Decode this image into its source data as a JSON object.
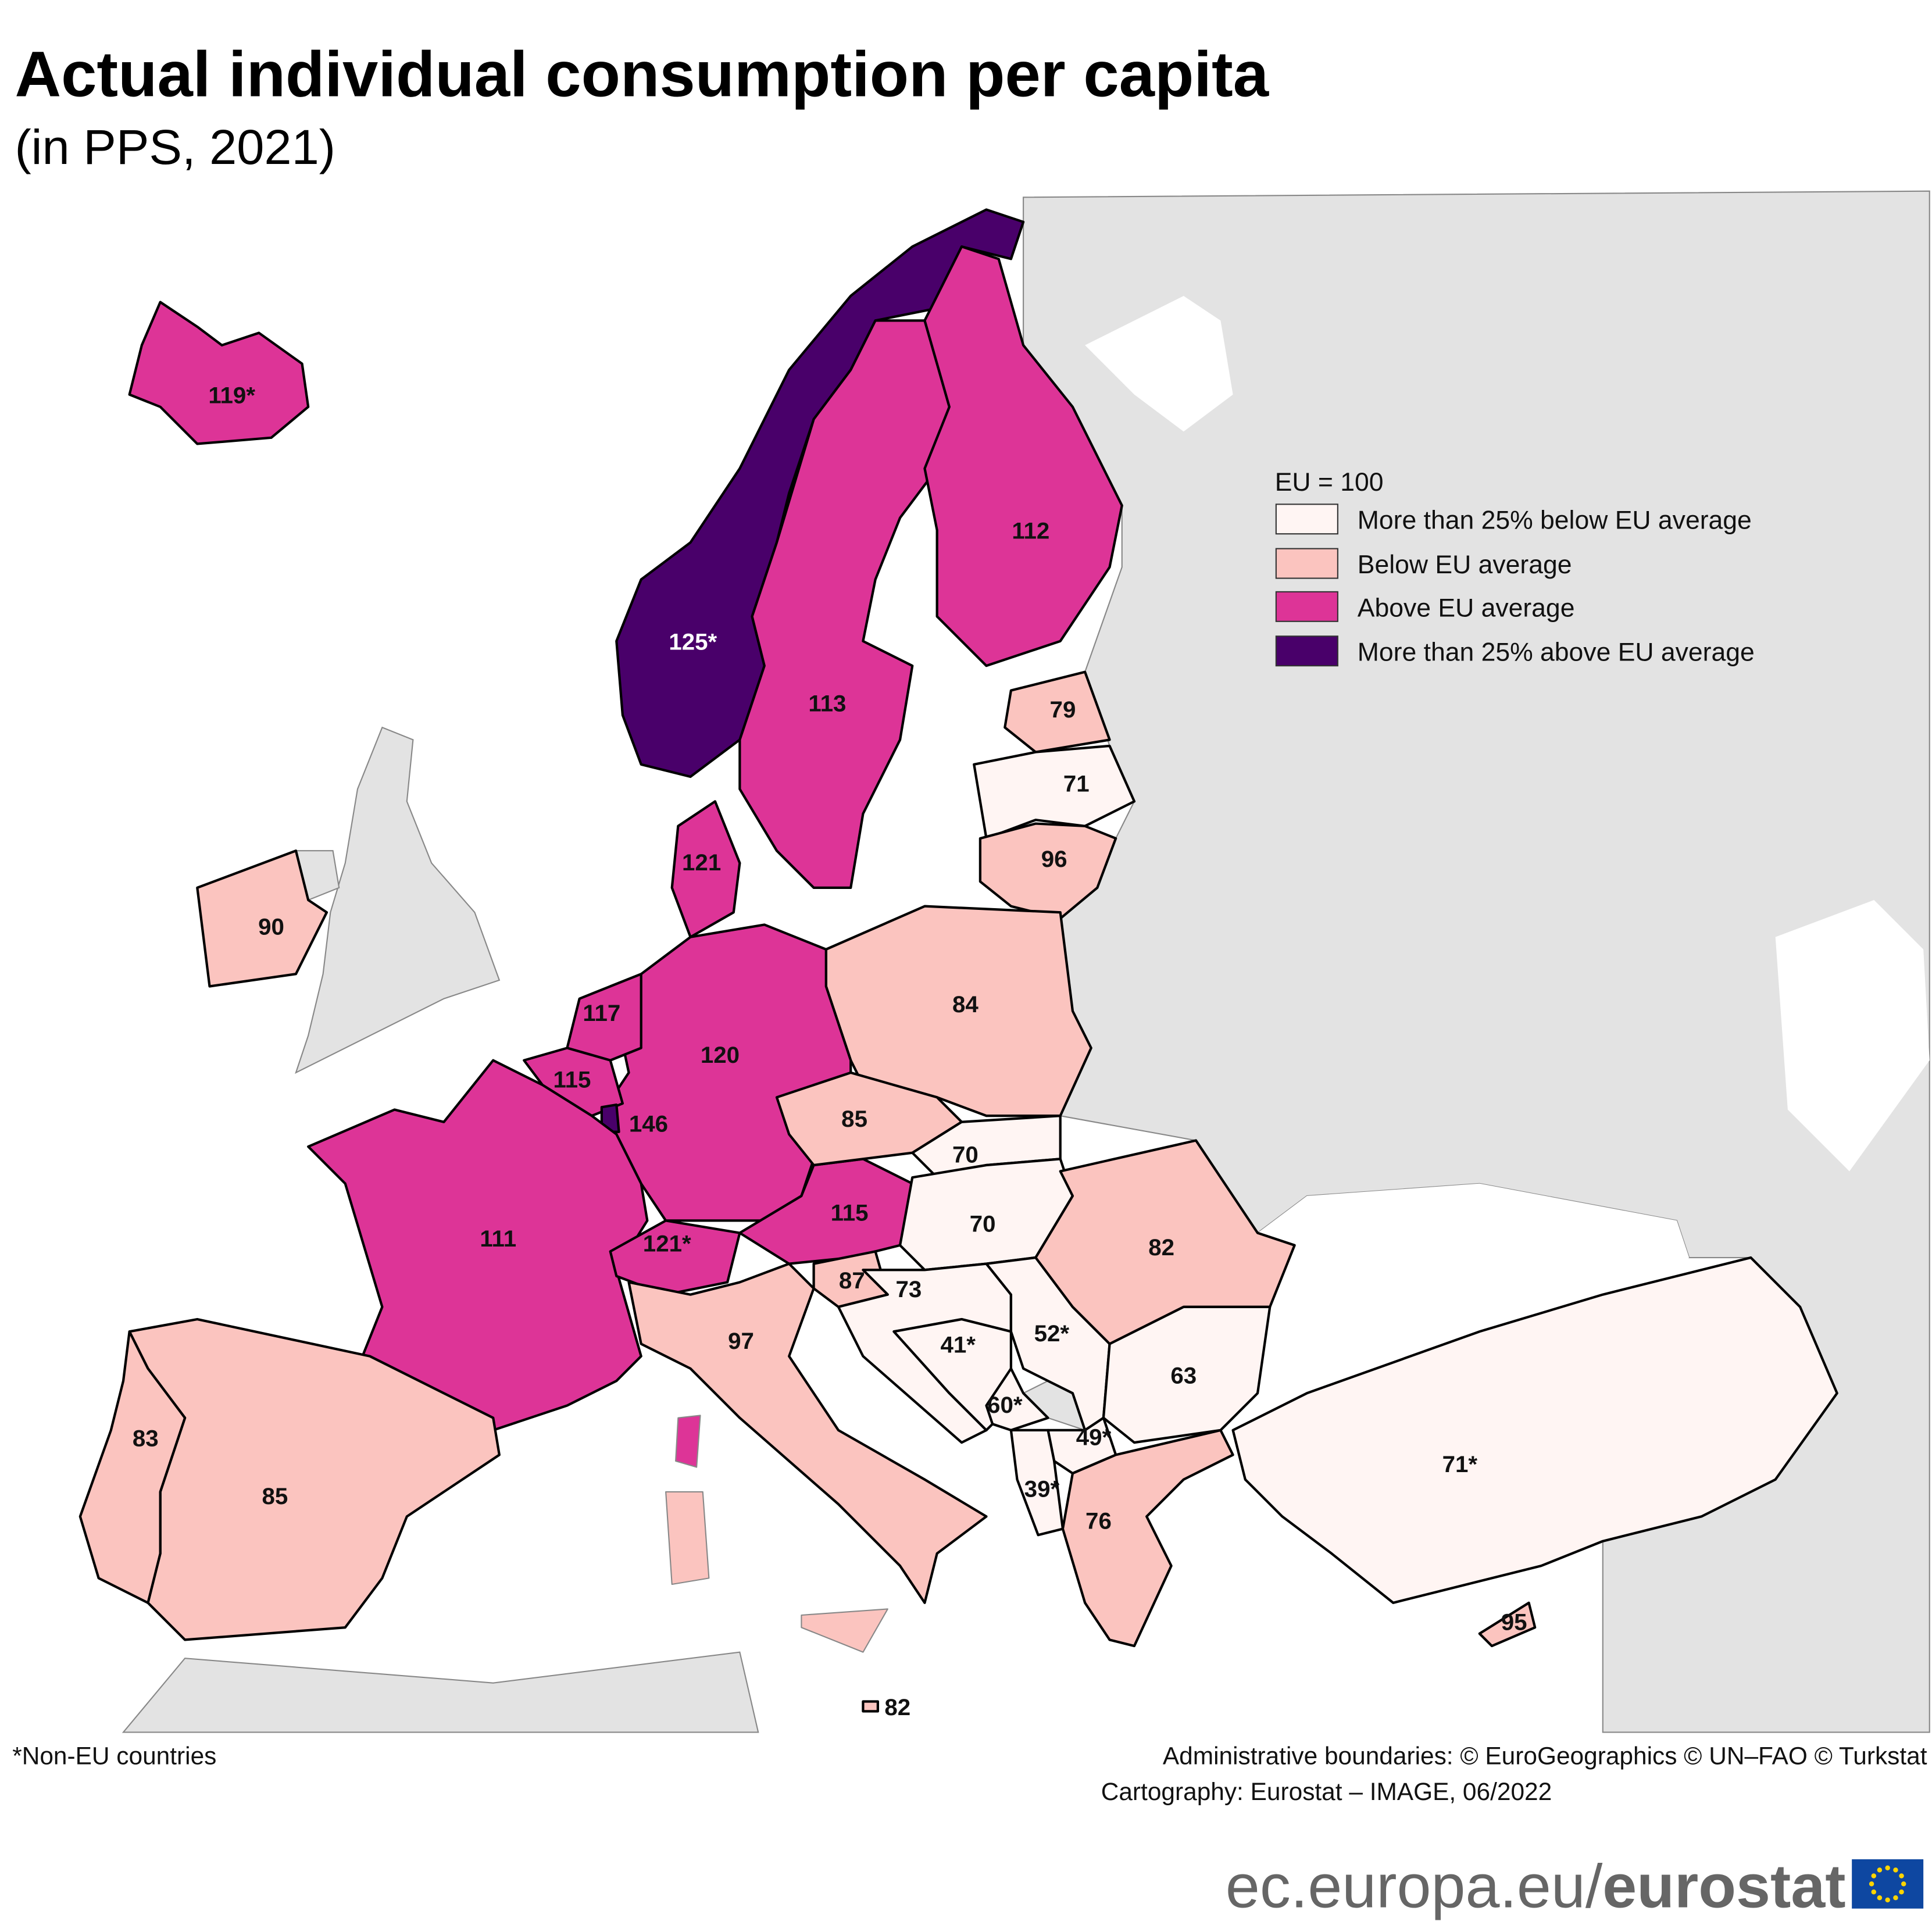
{
  "header": {
    "title": "Actual individual consumption per capita",
    "subtitle": "(in PPS, 2021)"
  },
  "legend": {
    "title": "EU = 100",
    "items": [
      {
        "label": "More than 25% below EU average",
        "color": "#fff5f3"
      },
      {
        "label": "Below EU average",
        "color": "#fbc4bf"
      },
      {
        "label": "Above EU average",
        "color": "#dd3497"
      },
      {
        "label": "More than 25% above EU average",
        "color": "#49006a"
      }
    ]
  },
  "colors": {
    "non_eu_land": "#e3e3e3",
    "sea": "#ffffff",
    "border": "#000000"
  },
  "regions": [
    {
      "label": "119*",
      "category": 2
    },
    {
      "label": "125*",
      "category": 3
    },
    {
      "label": "113",
      "category": 2
    },
    {
      "label": "112",
      "category": 2
    },
    {
      "label": "79",
      "category": 1
    },
    {
      "label": "71",
      "category": 0
    },
    {
      "label": "96",
      "category": 1
    },
    {
      "label": "84",
      "category": 1
    },
    {
      "label": "120",
      "category": 2
    },
    {
      "label": "121",
      "category": 2
    },
    {
      "label": "117",
      "category": 2
    },
    {
      "label": "115",
      "category": 2
    },
    {
      "label": "146",
      "category": 3
    },
    {
      "label": "111",
      "category": 2
    },
    {
      "label": "121*",
      "category": 2
    },
    {
      "label": "115",
      "category": 2
    },
    {
      "label": "85",
      "category": 1
    },
    {
      "label": "70",
      "category": 0
    },
    {
      "label": "70",
      "category": 0
    },
    {
      "label": "87",
      "category": 1
    },
    {
      "label": "73",
      "category": 0
    },
    {
      "label": "41*",
      "category": 0
    },
    {
      "label": "52*",
      "category": 0
    },
    {
      "label": "60*",
      "category": 0
    },
    {
      "label": "49*",
      "category": 0
    },
    {
      "label": "39*",
      "category": 0
    },
    {
      "label": "82",
      "category": 1
    },
    {
      "label": "63",
      "category": 0
    },
    {
      "label": "76",
      "category": 1
    },
    {
      "label": "97",
      "category": 1
    },
    {
      "label": "85",
      "category": 1
    },
    {
      "label": "83",
      "category": 1
    },
    {
      "label": "90",
      "category": 1
    },
    {
      "label": "95",
      "category": 1
    },
    {
      "label": "71*",
      "category": 0
    },
    {
      "label": "82",
      "category": 1
    }
  ],
  "footer": {
    "note": "*Non-EU countries",
    "credits_line1": "Administrative boundaries: © EuroGeographics © UN–FAO © Turkstat",
    "credits_line2": "Cartography: Eurostat – IMAGE, 06/2022",
    "url_plain": "ec.europa.eu/",
    "url_bold": "eurostat"
  }
}
